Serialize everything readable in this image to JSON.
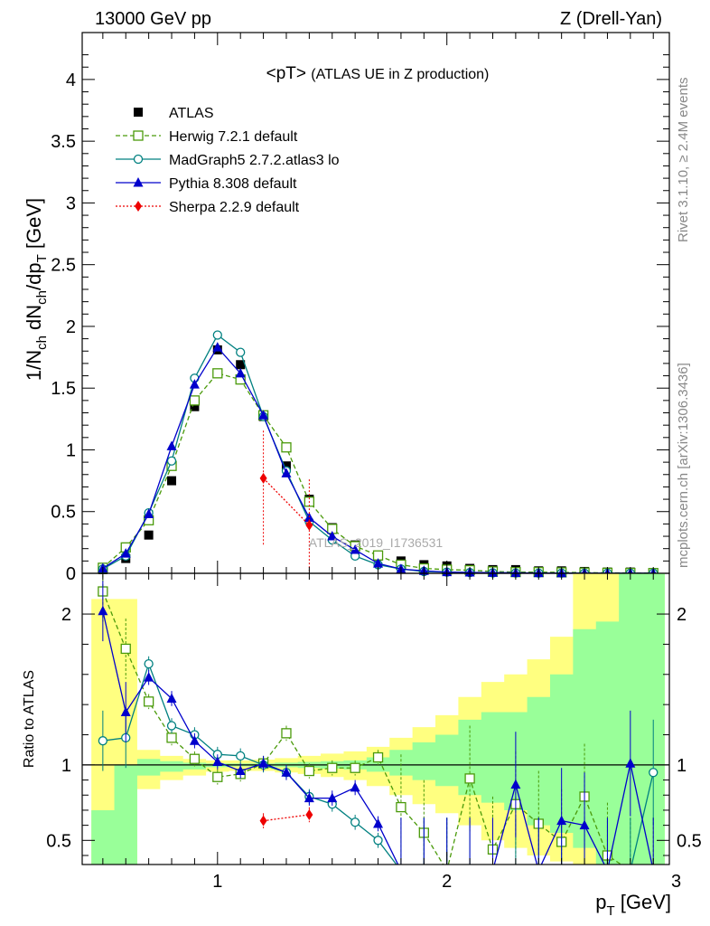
{
  "header": {
    "left": "13000 GeV pp",
    "right": "Z (Drell-Yan)"
  },
  "side_labels": {
    "rivet": "Rivet 3.1.10, ≥ 2.4M events",
    "mcplots": "mcplots.cern.ch [arXiv:1306.3436]"
  },
  "watermark": "ATLAS_2019_I1736531",
  "chart_data": [
    {
      "type": "line",
      "title": "<pT>",
      "title_note": "(ATLAS UE in Z production)",
      "xlabel": "p_T [GeV]",
      "ylabel": "1/N_ch dN_ch/dp_T [GeV]",
      "xlim": [
        0.41,
        2.97
      ],
      "ylim": [
        0,
        4.38
      ],
      "x_ticks": [
        1,
        2,
        3
      ],
      "y_ticks": [
        0,
        0.5,
        1,
        1.5,
        2,
        2.5,
        3,
        3.5,
        4
      ],
      "legend_position": "top-left",
      "x": [
        0.5,
        0.6,
        0.7,
        0.8,
        0.9,
        1.0,
        1.1,
        1.2,
        1.3,
        1.4,
        1.5,
        1.6,
        1.7,
        1.8,
        1.9,
        2.0,
        2.1,
        2.2,
        2.3,
        2.4,
        2.5,
        2.6,
        2.7,
        2.8,
        2.9
      ],
      "series": [
        {
          "name": "ATLAS",
          "color": "#000000",
          "marker": "square-filled",
          "line": "none",
          "values": [
            0.03,
            0.12,
            0.31,
            0.75,
            1.35,
            1.81,
            1.69,
            1.27,
            0.87,
            0.6,
            0.37,
            0.23,
            0.14,
            0.1,
            0.07,
            0.06,
            0.04,
            0.03,
            0.03,
            0.02,
            0.02,
            0.015,
            0.01,
            0.01,
            0.005
          ]
        },
        {
          "name": "Herwig 7.2.1 default",
          "color": "#4a9a0a",
          "marker": "square-open",
          "line": "dashed",
          "values": [
            0.045,
            0.21,
            0.43,
            0.87,
            1.4,
            1.62,
            1.57,
            1.28,
            1.02,
            0.58,
            0.36,
            0.22,
            0.145,
            0.07,
            0.04,
            0.03,
            0.025,
            0.015,
            0.01,
            0.01,
            0.008,
            0.006,
            0.004,
            0.003,
            0.002
          ]
        },
        {
          "name": "MadGraph5 2.7.2.atlas3 lo",
          "color": "#008080",
          "marker": "circle-open",
          "line": "solid",
          "values": [
            0.035,
            0.14,
            0.49,
            0.91,
            1.58,
            1.93,
            1.79,
            1.27,
            0.83,
            0.42,
            0.27,
            0.14,
            0.07,
            0.035,
            0.015,
            0.01,
            0.006,
            0.004,
            0.003,
            0.002,
            0.0015,
            0.001,
            0.001,
            0.001,
            0.0005
          ]
        },
        {
          "name": "Pythia 8.308 default",
          "color": "#0000cc",
          "marker": "triangle-filled",
          "line": "solid",
          "values": [
            0.04,
            0.16,
            0.48,
            1.03,
            1.53,
            1.83,
            1.62,
            1.28,
            0.81,
            0.45,
            0.3,
            0.19,
            0.08,
            0.035,
            0.02,
            0.01,
            0.007,
            0.005,
            0.004,
            0.003,
            0.002,
            0.0015,
            0.001,
            0.001,
            0.0005
          ]
        },
        {
          "name": "Sherpa 2.2.9 default",
          "color": "#ee0000",
          "marker": "diamond-filled",
          "line": "dotted",
          "x": [
            1.2,
            1.4
          ],
          "values": [
            0.77,
            0.39
          ]
        }
      ]
    },
    {
      "type": "line",
      "ylabel": "Ratio to ATLAS",
      "xlim": [
        0.41,
        2.97
      ],
      "ylim": [
        0.34,
        2.27
      ],
      "y_ticks": [
        0.5,
        1,
        2
      ],
      "reference_line": 1,
      "x": [
        0.5,
        0.6,
        0.7,
        0.8,
        0.9,
        1.0,
        1.1,
        1.2,
        1.3,
        1.4,
        1.5,
        1.6,
        1.7,
        1.8,
        1.9,
        2.0,
        2.1,
        2.2,
        2.3,
        2.4,
        2.5,
        2.6,
        2.7,
        2.8,
        2.9
      ],
      "band_inner": [
        0.7,
        1.0,
        1.04,
        1.025,
        1.015,
        1.01,
        1.01,
        1.01,
        1.015,
        1.02,
        1.025,
        1.03,
        1.05,
        1.1,
        1.15,
        1.2,
        1.3,
        1.35,
        1.35,
        1.45,
        1.6,
        1.9,
        1.95,
        2.27,
        2.27
      ],
      "band_inner_low": [
        0.25,
        0.25,
        0.93,
        0.955,
        0.97,
        0.985,
        0.99,
        0.99,
        0.985,
        0.98,
        0.975,
        0.97,
        0.955,
        0.93,
        0.9,
        0.86,
        0.8,
        0.75,
        0.7,
        0.6,
        0.55,
        0.45,
        0.34,
        0.34,
        0.34
      ],
      "band_outer": [
        2.1,
        2.1,
        1.1,
        1.06,
        1.04,
        1.03,
        1.03,
        1.035,
        1.045,
        1.06,
        1.075,
        1.09,
        1.12,
        1.18,
        1.25,
        1.33,
        1.45,
        1.55,
        1.6,
        1.7,
        1.85,
        2.27,
        2.27,
        2.27,
        2.27
      ],
      "band_outer_low": [
        0.25,
        0.25,
        0.84,
        0.9,
        0.93,
        0.955,
        0.96,
        0.96,
        0.95,
        0.94,
        0.92,
        0.9,
        0.86,
        0.8,
        0.74,
        0.68,
        0.6,
        0.5,
        0.45,
        0.4,
        0.36,
        0.34,
        0.34,
        0.34,
        0.34
      ],
      "series": [
        {
          "name": "Herwig 7.2.1 default",
          "color": "#4a9a0a",
          "marker": "square-open",
          "line": "dashed",
          "values": [
            2.15,
            1.77,
            1.42,
            1.18,
            1.04,
            0.92,
            0.94,
            1.01,
            1.21,
            0.96,
            0.98,
            0.98,
            1.05,
            0.72,
            0.55,
            0.3,
            0.91,
            0.44,
            0.74,
            0.61,
            0.49,
            0.79,
            0.4,
            0.3,
            0.3
          ]
        },
        {
          "name": "MadGraph5 2.7.2.atlas3 lo",
          "color": "#008080",
          "marker": "circle-open",
          "line": "solid",
          "values": [
            1.16,
            1.18,
            1.67,
            1.26,
            1.2,
            1.07,
            1.06,
            1.0,
            0.95,
            0.79,
            0.74,
            0.62,
            0.5,
            0.3,
            0.3,
            0.3,
            0.3,
            0.3,
            0.3,
            0.3,
            0.3,
            0.3,
            0.3,
            0.3,
            0.95
          ]
        },
        {
          "name": "Pythia 8.308 default",
          "color": "#0000cc",
          "marker": "triangle-filled",
          "line": "solid",
          "values": [
            2.02,
            1.35,
            1.58,
            1.44,
            1.16,
            1.02,
            0.96,
            1.01,
            0.95,
            0.78,
            0.78,
            0.85,
            0.61,
            0.3,
            0.3,
            0.3,
            0.3,
            0.3,
            0.87,
            0.3,
            0.63,
            0.6,
            0.3,
            1.01,
            0.3
          ]
        },
        {
          "name": "Sherpa 2.2.9 default",
          "color": "#ee0000",
          "marker": "diamond-filled",
          "line": "dotted",
          "x": [
            1.2,
            1.4
          ],
          "values": [
            0.63,
            0.67
          ]
        }
      ]
    }
  ]
}
